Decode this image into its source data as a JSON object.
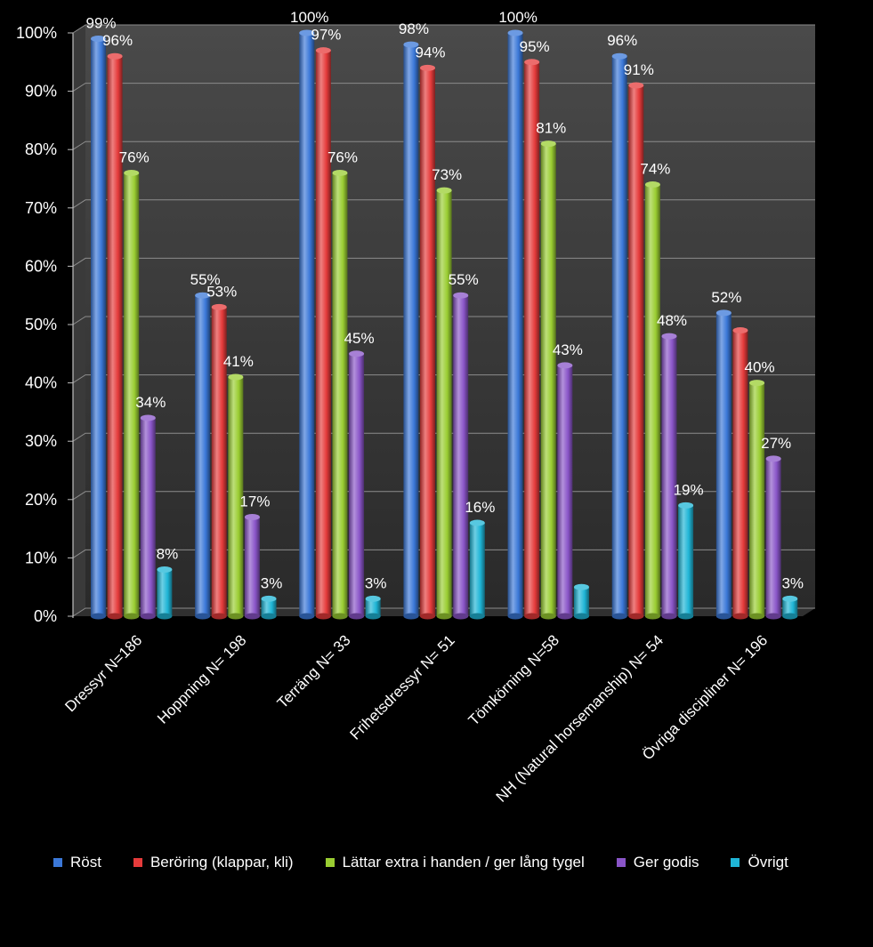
{
  "chart_data": {
    "type": "bar",
    "categories": [
      "Dressyr N=186",
      "Hoppning N= 198",
      "Terräng N= 33",
      "Frihetsdressyr N= 51",
      "Tömkörning N=58",
      "NH (Natural horsemanship) N= 54",
      "Övriga discipliner N= 196"
    ],
    "series": [
      {
        "name": "Röst",
        "color": "#3b78d8",
        "values": [
          99,
          55,
          100,
          98,
          100,
          96,
          52
        ],
        "labels": [
          "99%",
          "55%",
          "100%",
          "98%",
          "100%",
          "96%",
          "52%"
        ]
      },
      {
        "name": "Beröring (klappar, kli)",
        "color": "#e53b3b",
        "values": [
          96,
          53,
          97,
          94,
          95,
          91,
          49
        ],
        "labels": [
          "96%",
          "53%",
          "97%",
          "94%",
          "95%",
          "91%",
          ""
        ]
      },
      {
        "name": "Lättar extra i handen / ger lång tygel",
        "color": "#9acd32",
        "values": [
          76,
          41,
          76,
          73,
          81,
          74,
          40
        ],
        "labels": [
          "76%",
          "41%",
          "76%",
          "73%",
          "81%",
          "74%",
          "40%"
        ]
      },
      {
        "name": "Ger godis",
        "color": "#8a55c8",
        "values": [
          34,
          17,
          45,
          55,
          43,
          48,
          27
        ],
        "labels": [
          "34%",
          "17%",
          "45%",
          "55%",
          "43%",
          "48%",
          "27%"
        ]
      },
      {
        "name": "Övrigt",
        "color": "#1fb5d6",
        "values": [
          8,
          3,
          3,
          16,
          5,
          19,
          3
        ],
        "labels": [
          "8%",
          "3%",
          "3%",
          "16%",
          "",
          "19%",
          "3%"
        ]
      }
    ],
    "yticks": [
      "0%",
      "10%",
      "20%",
      "30%",
      "40%",
      "50%",
      "60%",
      "70%",
      "80%",
      "90%",
      "100%"
    ],
    "ylim": [
      0,
      100
    ],
    "grid": true,
    "legend_position": "bottom"
  }
}
